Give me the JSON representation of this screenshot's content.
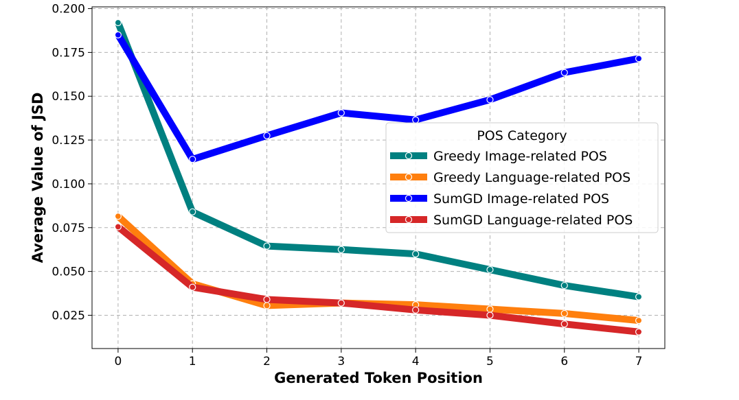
{
  "chart_data": {
    "type": "line",
    "title": "",
    "xlabel": "Generated Token Position",
    "ylabel": "Average Value of JSD",
    "x": [
      0,
      1,
      2,
      3,
      4,
      5,
      6,
      7
    ],
    "xticks": [
      "0",
      "1",
      "2",
      "3",
      "4",
      "5",
      "6",
      "7"
    ],
    "xlim": [
      -0.35,
      7.35
    ],
    "ylim": [
      0.006,
      0.201
    ],
    "yticks": [
      "0.025",
      "0.050",
      "0.075",
      "0.100",
      "0.125",
      "0.150",
      "0.175",
      "0.200"
    ],
    "ytick_values": [
      0.025,
      0.05,
      0.075,
      0.1,
      0.125,
      0.15,
      0.175,
      0.2
    ],
    "grid": true,
    "legend": {
      "title": "POS Category",
      "placement": "center-right"
    },
    "series": [
      {
        "name": "Greedy Image-related POS",
        "color": "#008080",
        "values": [
          0.192,
          0.084,
          0.0645,
          0.0625,
          0.06,
          0.051,
          0.042,
          0.0355
        ]
      },
      {
        "name": "Greedy Language-related POS",
        "color": "#ff7f0e",
        "values": [
          0.0815,
          0.043,
          0.0305,
          0.032,
          0.031,
          0.0285,
          0.026,
          0.022
        ]
      },
      {
        "name": "SumGD Image-related POS",
        "color": "#0000ff",
        "values": [
          0.185,
          0.114,
          0.1275,
          0.1405,
          0.1365,
          0.148,
          0.1635,
          0.1715
        ]
      },
      {
        "name": "SumGD Language-related POS",
        "color": "#d62728",
        "values": [
          0.0755,
          0.041,
          0.034,
          0.032,
          0.028,
          0.025,
          0.02,
          0.0155
        ]
      }
    ]
  }
}
